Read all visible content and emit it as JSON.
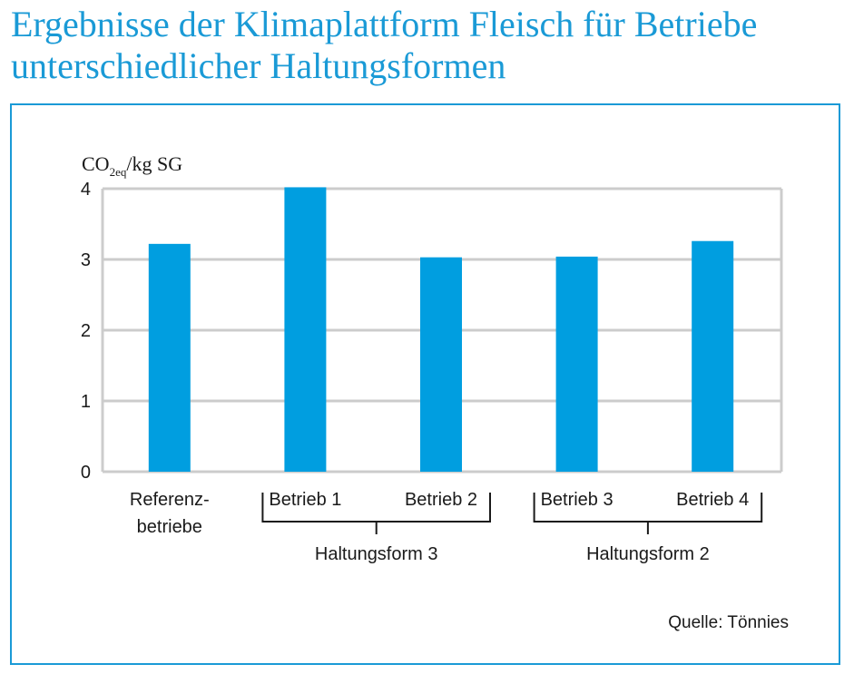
{
  "title_line1": "Ergebnisse der Klimaplattform Fleisch für Betriebe",
  "title_line2": "unterschiedlicher Haltungsformen",
  "source": "Quelle: Tönnies",
  "colors": {
    "bar": "#009ee0",
    "accent": "#1a9ad6",
    "grid": "#cccccc"
  },
  "chart_data": {
    "type": "bar",
    "ylabel_main": "CO",
    "ylabel_sub": "2eq",
    "ylabel_unit": "/kg SG",
    "ylim": [
      0,
      4
    ],
    "yticks": [
      "0",
      "1",
      "2",
      "3",
      "4"
    ],
    "grid": true,
    "categories": [
      {
        "line1": "Referenz-",
        "line2": "betriebe"
      },
      {
        "line1": "Betrieb 1",
        "line2": ""
      },
      {
        "line1": "Betrieb 2",
        "line2": ""
      },
      {
        "line1": "Betrieb 3",
        "line2": ""
      },
      {
        "line1": "Betrieb 4",
        "line2": ""
      }
    ],
    "values": [
      3.22,
      4.02,
      3.03,
      3.04,
      3.26
    ],
    "groups": [
      {
        "label": "Haltungsform 3",
        "from": 1,
        "to": 2
      },
      {
        "label": "Haltungsform 2",
        "from": 3,
        "to": 4
      }
    ]
  }
}
